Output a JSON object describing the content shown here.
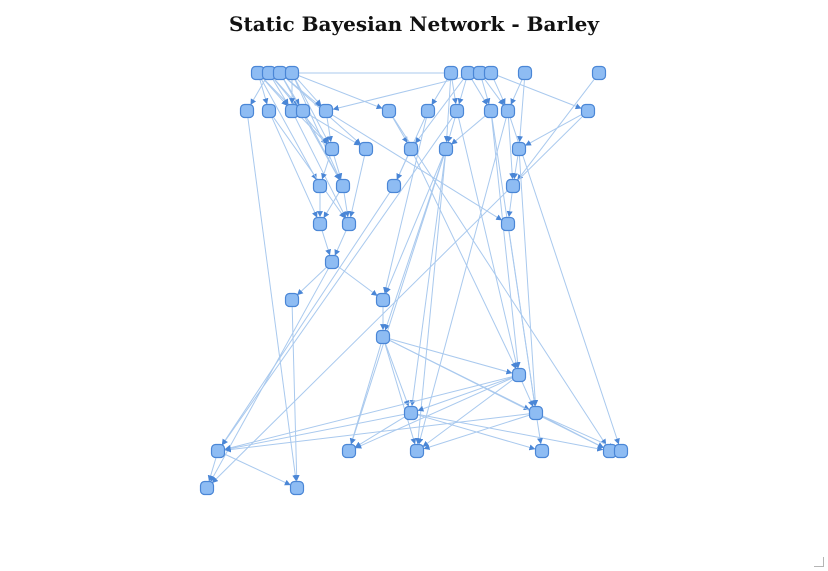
{
  "title": "Static Bayesian Network - Barley",
  "colors": {
    "node_fill": "#8ebcf3",
    "node_stroke": "#4a86d6",
    "edge": "#a9c9ee"
  },
  "graph": {
    "nodes": [
      "r1a",
      "r1b",
      "r1c",
      "r1d",
      "r1e",
      "r1f",
      "r1g",
      "r1h",
      "r1i",
      "r1j",
      "r2a",
      "r2b",
      "r2c",
      "r2d",
      "r2e",
      "r2f",
      "r2g",
      "r2h",
      "r2i",
      "r2j",
      "r2k",
      "r3a",
      "r3b",
      "r3c",
      "r3d",
      "r3e",
      "r4a",
      "r4b",
      "r4c",
      "r4d",
      "r5a",
      "r5b",
      "r5c",
      "r6a",
      "r7a",
      "r7b",
      "r8a",
      "r9a",
      "r10a",
      "r10b",
      "r11a",
      "r11b",
      "r11c",
      "r11d",
      "r11e",
      "r11f",
      "r12a",
      "r12b"
    ],
    "edges": [
      [
        "r1a",
        "r2b"
      ],
      [
        "r1a",
        "r2c"
      ],
      [
        "r1a",
        "r3a"
      ],
      [
        "r1a",
        "r4a"
      ],
      [
        "r1b",
        "r2c"
      ],
      [
        "r1b",
        "r2d"
      ],
      [
        "r1b",
        "r3a"
      ],
      [
        "r1b",
        "r2a"
      ],
      [
        "r1c",
        "r2d"
      ],
      [
        "r1c",
        "r4b"
      ],
      [
        "r1c",
        "r2e"
      ],
      [
        "r1c",
        "r3b"
      ],
      [
        "r1d",
        "r2c"
      ],
      [
        "r1d",
        "r2e"
      ],
      [
        "r1d",
        "r3a"
      ],
      [
        "r1d",
        "r2f"
      ],
      [
        "r1d",
        "r4b"
      ],
      [
        "r1e",
        "r2g"
      ],
      [
        "r1e",
        "r2h"
      ],
      [
        "r1e",
        "r3d"
      ],
      [
        "r1e",
        "r1a"
      ],
      [
        "r1f",
        "r2h"
      ],
      [
        "r1f",
        "r2i"
      ],
      [
        "r1f",
        "r3c"
      ],
      [
        "r1g",
        "r2i"
      ],
      [
        "r1g",
        "r2j"
      ],
      [
        "r1g",
        "r2e"
      ],
      [
        "r1h",
        "r2j"
      ],
      [
        "r1h",
        "r2k"
      ],
      [
        "r1i",
        "r2j"
      ],
      [
        "r1i",
        "r3e"
      ],
      [
        "r1j",
        "r4c"
      ],
      [
        "r2a",
        "r12b"
      ],
      [
        "r2b",
        "r5a"
      ],
      [
        "r2b",
        "r5b"
      ],
      [
        "r2c",
        "r5b"
      ],
      [
        "r2d",
        "r4b"
      ],
      [
        "r2d",
        "r3b"
      ],
      [
        "r2e",
        "r5c"
      ],
      [
        "r2e",
        "r3a"
      ],
      [
        "r2f",
        "r3c"
      ],
      [
        "r2f",
        "r11e"
      ],
      [
        "r2g",
        "r4d"
      ],
      [
        "r2g",
        "r7b"
      ],
      [
        "r2h",
        "r3d"
      ],
      [
        "r2h",
        "r9a"
      ],
      [
        "r2h",
        "r11a"
      ],
      [
        "r2i",
        "r3d"
      ],
      [
        "r2i",
        "r9a"
      ],
      [
        "r2i",
        "r10b"
      ],
      [
        "r2j",
        "r4c"
      ],
      [
        "r2j",
        "r11c"
      ],
      [
        "r2j",
        "r11f"
      ],
      [
        "r2k",
        "r3e"
      ],
      [
        "r2k",
        "r12a"
      ],
      [
        "r3a",
        "r4a"
      ],
      [
        "r3a",
        "r4b"
      ],
      [
        "r3b",
        "r5b"
      ],
      [
        "r3c",
        "r4d"
      ],
      [
        "r3c",
        "r9a"
      ],
      [
        "r3d",
        "r7b"
      ],
      [
        "r3d",
        "r8a"
      ],
      [
        "r3d",
        "r10a"
      ],
      [
        "r3d",
        "r11b"
      ],
      [
        "r3d",
        "r11c"
      ],
      [
        "r3e",
        "r4c"
      ],
      [
        "r3e",
        "r10b"
      ],
      [
        "r4a",
        "r5a"
      ],
      [
        "r4b",
        "r5a"
      ],
      [
        "r4b",
        "r5b"
      ],
      [
        "r4d",
        "r11a"
      ],
      [
        "r4c",
        "r5c"
      ],
      [
        "r5a",
        "r6a"
      ],
      [
        "r5b",
        "r6a"
      ],
      [
        "r5c",
        "r10b"
      ],
      [
        "r6a",
        "r7a"
      ],
      [
        "r6a",
        "r7b"
      ],
      [
        "r6a",
        "r12a"
      ],
      [
        "r7a",
        "r12b"
      ],
      [
        "r7b",
        "r8a"
      ],
      [
        "r8a",
        "r9a"
      ],
      [
        "r8a",
        "r10a"
      ],
      [
        "r8a",
        "r10b"
      ],
      [
        "r8a",
        "r11b"
      ],
      [
        "r8a",
        "r11c"
      ],
      [
        "r8a",
        "r11e"
      ],
      [
        "r9a",
        "r10a"
      ],
      [
        "r9a",
        "r10b"
      ],
      [
        "r9a",
        "r11b"
      ],
      [
        "r9a",
        "r11c"
      ],
      [
        "r9a",
        "r11a"
      ],
      [
        "r10a",
        "r11a"
      ],
      [
        "r10a",
        "r11b"
      ],
      [
        "r10a",
        "r11d"
      ],
      [
        "r10a",
        "r11e"
      ],
      [
        "r10b",
        "r11c"
      ],
      [
        "r10b",
        "r11d"
      ],
      [
        "r10b",
        "r11e"
      ],
      [
        "r10b",
        "r11f"
      ],
      [
        "r10b",
        "r11a"
      ],
      [
        "r11a",
        "r12a"
      ],
      [
        "r11a",
        "r12b"
      ]
    ]
  }
}
